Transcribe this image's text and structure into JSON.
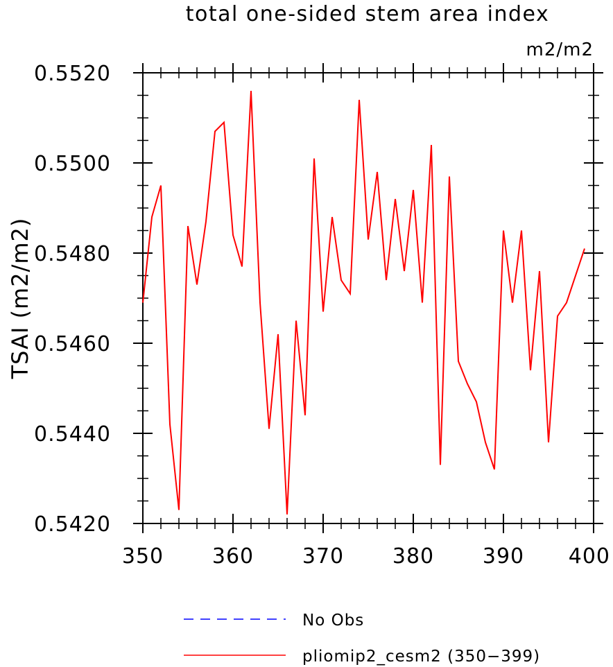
{
  "chart_data": {
    "type": "line",
    "title": "total one-sided stem area index",
    "units": "m2/m2",
    "xlabel": "",
    "ylabel": "TSAI  (m2/m2)",
    "xlim": [
      350,
      400
    ],
    "ylim": [
      0.542,
      0.552
    ],
    "xticks": [
      350,
      360,
      370,
      380,
      390,
      400
    ],
    "yticks": [
      0.542,
      0.544,
      0.546,
      0.548,
      0.55,
      0.552
    ],
    "xtick_labels": [
      "350",
      "360",
      "370",
      "380",
      "390",
      "400"
    ],
    "ytick_labels": [
      "0.5420",
      "0.5440",
      "0.5460",
      "0.5480",
      "0.5500",
      "0.5520"
    ],
    "grid": false,
    "legend_position": "bottom",
    "legend": [
      {
        "name": "No Obs",
        "color": "#0000ff",
        "dash": true
      },
      {
        "name": "pliomip2_cesm2 (350−399)",
        "color": "#ff0000",
        "dash": false
      }
    ],
    "series": [
      {
        "name": "pliomip2_cesm2 (350−399)",
        "color": "#ff0000",
        "x": [
          350,
          351,
          352,
          353,
          354,
          355,
          356,
          357,
          358,
          359,
          360,
          361,
          362,
          363,
          364,
          365,
          366,
          367,
          368,
          369,
          370,
          371,
          372,
          373,
          374,
          375,
          376,
          377,
          378,
          379,
          380,
          381,
          382,
          383,
          384,
          385,
          386,
          387,
          388,
          389,
          390,
          391,
          392,
          393,
          394,
          395,
          396,
          397,
          398,
          399
        ],
        "y": [
          0.5469,
          0.5488,
          0.5495,
          0.5442,
          0.5423,
          0.5486,
          0.5473,
          0.5487,
          0.5507,
          0.5509,
          0.5484,
          0.5477,
          0.5516,
          0.5469,
          0.5441,
          0.5462,
          0.5422,
          0.5465,
          0.5444,
          0.5501,
          0.5467,
          0.5488,
          0.5474,
          0.5471,
          0.5514,
          0.5483,
          0.5498,
          0.5474,
          0.5492,
          0.5476,
          0.5494,
          0.5469,
          0.5504,
          0.5433,
          0.5497,
          0.5456,
          0.5451,
          0.5447,
          0.5438,
          0.5432,
          0.5485,
          0.5469,
          0.5485,
          0.5454,
          0.5476,
          0.5438,
          0.5466,
          0.5469,
          0.5475,
          0.5481
        ]
      }
    ]
  }
}
